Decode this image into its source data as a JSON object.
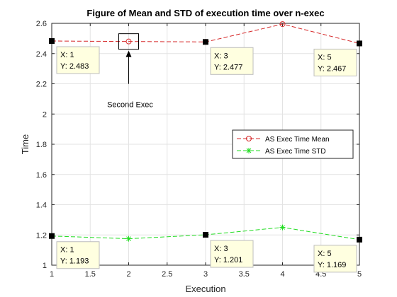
{
  "chart_data": {
    "type": "line",
    "title": "Figure of Mean and STD of execution time over n-exec",
    "xlabel": "Execution",
    "ylabel": "Time",
    "xlim": [
      1,
      5
    ],
    "ylim": [
      1,
      2.6
    ],
    "x_ticks": [
      "1",
      "1.5",
      "2",
      "2.5",
      "3",
      "3.5",
      "4",
      "4.5",
      "5"
    ],
    "y_ticks": [
      "1",
      "1.2",
      "1.4",
      "1.6",
      "1.8",
      "2",
      "2.2",
      "2.4",
      "2.6"
    ],
    "grid": true,
    "legend_position": "right",
    "x": [
      1,
      2,
      3,
      4,
      5
    ],
    "series": [
      {
        "name": "AS Exec Time Mean",
        "values": [
          2.483,
          2.48,
          2.477,
          2.595,
          2.467
        ],
        "color": "#d62728",
        "marker": "circle",
        "linestyle": "dashed"
      },
      {
        "name": "AS Exec Time STD",
        "values": [
          1.193,
          1.175,
          1.201,
          1.25,
          1.169
        ],
        "color": "#22dd22",
        "marker": "asterisk",
        "linestyle": "dashed"
      }
    ],
    "datatips": [
      {
        "x": 1,
        "y": 2.483,
        "line1": "X: 1",
        "line2": "Y: 2.483"
      },
      {
        "x": 3,
        "y": 2.477,
        "line1": "X: 3",
        "line2": "Y: 2.477"
      },
      {
        "x": 5,
        "y": 2.467,
        "line1": "X: 5",
        "line2": "Y: 2.467"
      },
      {
        "x": 1,
        "y": 1.193,
        "line1": "X: 1",
        "line2": "Y: 1.193"
      },
      {
        "x": 3,
        "y": 1.201,
        "line1": "X: 3",
        "line2": "Y: 1.201"
      },
      {
        "x": 5,
        "y": 1.169,
        "line1": "X: 5",
        "line2": "Y: 1.169"
      }
    ],
    "annotation": {
      "text": "Second Exec",
      "target_x": 2,
      "target_y": 2.48
    }
  }
}
